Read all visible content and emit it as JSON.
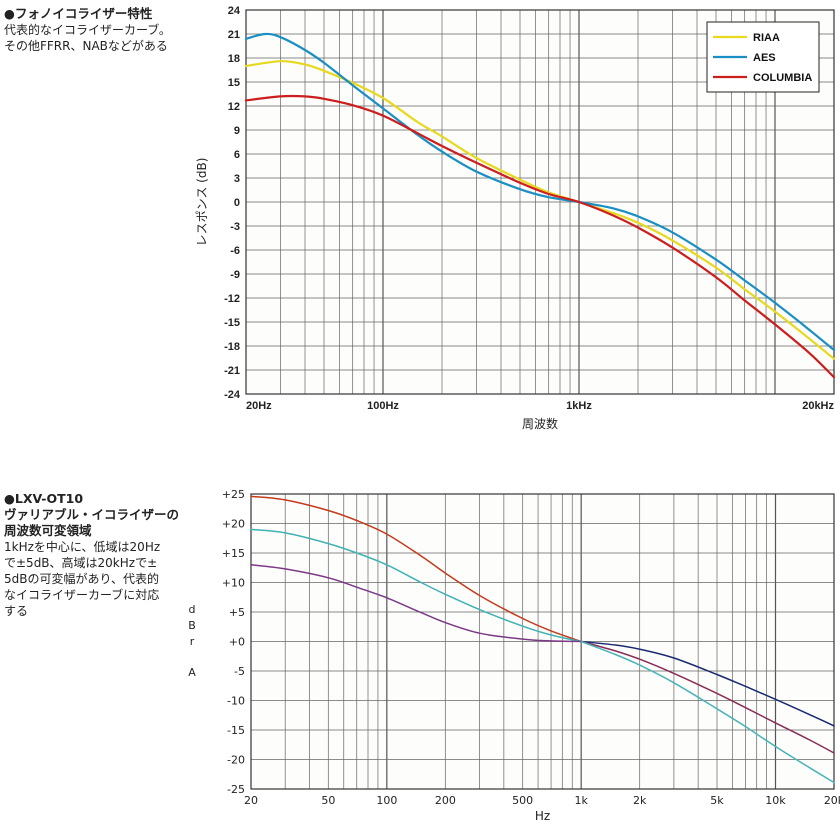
{
  "caption1": {
    "title": "●フォノイコライザー特性",
    "lines": [
      "代表的なイコライザーカーブ。",
      "その他FFRR、NABなどがある"
    ]
  },
  "caption2": {
    "title_lines": [
      "●LXV-OT10",
      "ヴァリアブル・イコライザーの",
      "周波数可変領域"
    ],
    "lines": [
      "1kHzを中心に、低域は20Hz",
      "で±5dB、高域は20kHzで±",
      "5dBの可変幅があり、代表的",
      "なイコライザーカーブに対応",
      "する"
    ]
  },
  "chart_data": [
    {
      "type": "line",
      "title": "",
      "xlabel": "周波数",
      "ylabel": "レスポンス (dB)",
      "xscale": "log",
      "xlim": [
        20,
        20000
      ],
      "ylim": [
        -24,
        24
      ],
      "yticks": [
        24,
        21,
        18,
        15,
        12,
        9,
        6,
        3,
        0,
        -3,
        -6,
        -9,
        -12,
        -15,
        -18,
        -21,
        -24
      ],
      "xtick_labels": [
        {
          "value": 20,
          "label": "20Hz"
        },
        {
          "value": 100,
          "label": "100Hz"
        },
        {
          "value": 1000,
          "label": "1kHz"
        },
        {
          "value": 20000,
          "label": "20kHz"
        }
      ],
      "grid": true,
      "legend": "top-right",
      "series": [
        {
          "name": "RIAA",
          "color": "#e8d81e",
          "x": [
            20,
            30,
            40,
            50,
            70,
            100,
            150,
            200,
            300,
            500,
            700,
            1000,
            1500,
            2000,
            3000,
            5000,
            7000,
            10000,
            15000,
            20000
          ],
          "y": [
            17.0,
            17.6,
            17.2,
            16.4,
            14.9,
            13.0,
            10.0,
            8.2,
            5.5,
            2.8,
            1.2,
            0.0,
            -1.4,
            -2.6,
            -4.8,
            -8.2,
            -10.9,
            -13.7,
            -17.1,
            -19.6
          ]
        },
        {
          "name": "AES",
          "color": "#1a8fc4",
          "x": [
            20,
            25,
            30,
            40,
            50,
            70,
            100,
            150,
            200,
            300,
            500,
            700,
            1000,
            1500,
            2000,
            3000,
            5000,
            7000,
            10000,
            15000,
            20000
          ],
          "y": [
            20.4,
            21.0,
            20.6,
            19.0,
            17.4,
            14.6,
            11.7,
            8.4,
            6.3,
            3.8,
            1.6,
            0.6,
            0.0,
            -0.8,
            -1.8,
            -3.8,
            -7.2,
            -9.8,
            -12.6,
            -16.0,
            -18.5
          ]
        },
        {
          "name": "COLUMBIA",
          "color": "#cc1e1e",
          "x": [
            20,
            30,
            40,
            50,
            70,
            100,
            150,
            200,
            300,
            500,
            700,
            1000,
            1500,
            2000,
            3000,
            5000,
            7000,
            10000,
            15000,
            20000
          ],
          "y": [
            12.7,
            13.2,
            13.2,
            12.9,
            12.1,
            10.8,
            8.6,
            7.0,
            4.9,
            2.4,
            1.0,
            0.0,
            -1.7,
            -3.2,
            -5.7,
            -9.4,
            -12.3,
            -15.3,
            -18.9,
            -21.9
          ]
        }
      ]
    },
    {
      "type": "line",
      "title": "",
      "xlabel": "Hz",
      "ylabel": "dBr A",
      "ylabel_chars": [
        "d",
        "B",
        "r",
        "A"
      ],
      "xscale": "log",
      "xlim": [
        20,
        20000
      ],
      "ylim": [
        -25,
        25
      ],
      "yticks": [
        25,
        20,
        15,
        10,
        5,
        0,
        -5,
        -10,
        -15,
        -20,
        -25
      ],
      "ytick_labels": [
        "+25",
        "+20",
        "+15",
        "+10",
        "+5",
        "+0",
        "-5",
        "-10",
        "-15",
        "-20",
        "-25"
      ],
      "xtick_labels": [
        {
          "value": 20,
          "label": "20"
        },
        {
          "value": 50,
          "label": "50"
        },
        {
          "value": 100,
          "label": "100"
        },
        {
          "value": 200,
          "label": "200"
        },
        {
          "value": 500,
          "label": "500"
        },
        {
          "value": 1000,
          "label": "1k"
        },
        {
          "value": 2000,
          "label": "2k"
        },
        {
          "value": 5000,
          "label": "5k"
        },
        {
          "value": 10000,
          "label": "10k"
        },
        {
          "value": 20000,
          "label": "20k"
        }
      ],
      "grid": true,
      "legend": "none",
      "series": [
        {
          "color": "#c43a1c",
          "x": [
            20,
            30,
            50,
            70,
            100,
            150,
            200,
            300,
            500,
            700,
            1000
          ],
          "y": [
            24.6,
            24.0,
            22.2,
            20.5,
            18.2,
            14.5,
            11.6,
            7.8,
            3.9,
            1.8,
            0.0
          ]
        },
        {
          "color": "#3fb2b2",
          "x": [
            20,
            30,
            50,
            70,
            100,
            150,
            200,
            300,
            500,
            700,
            1000
          ],
          "y": [
            19.0,
            18.4,
            16.6,
            15.0,
            13.0,
            10.0,
            8.0,
            5.4,
            2.6,
            1.1,
            0.0
          ]
        },
        {
          "color": "#7a3a86",
          "x": [
            20,
            30,
            50,
            70,
            100,
            150,
            200,
            300,
            500,
            700,
            1000
          ],
          "y": [
            13.0,
            12.3,
            10.8,
            9.2,
            7.4,
            4.9,
            3.2,
            1.4,
            0.4,
            0.1,
            0.0
          ]
        },
        {
          "color": "#1a2a72",
          "x": [
            1000,
            1500,
            2000,
            3000,
            5000,
            7000,
            10000,
            15000,
            20000
          ],
          "y": [
            0.0,
            -0.6,
            -1.3,
            -2.8,
            -5.6,
            -7.6,
            -9.8,
            -12.4,
            -14.3
          ]
        },
        {
          "color": "#8a2c58",
          "x": [
            1000,
            1500,
            2000,
            3000,
            5000,
            7000,
            10000,
            15000,
            20000
          ],
          "y": [
            0.0,
            -1.6,
            -3.0,
            -5.4,
            -8.8,
            -11.2,
            -13.8,
            -16.7,
            -18.9
          ]
        },
        {
          "color": "#48b4b8",
          "x": [
            1000,
            1500,
            2000,
            3000,
            5000,
            7000,
            10000,
            15000,
            20000
          ],
          "y": [
            0.0,
            -2.2,
            -4.0,
            -7.0,
            -11.4,
            -14.4,
            -17.8,
            -21.4,
            -23.9
          ]
        }
      ]
    }
  ]
}
